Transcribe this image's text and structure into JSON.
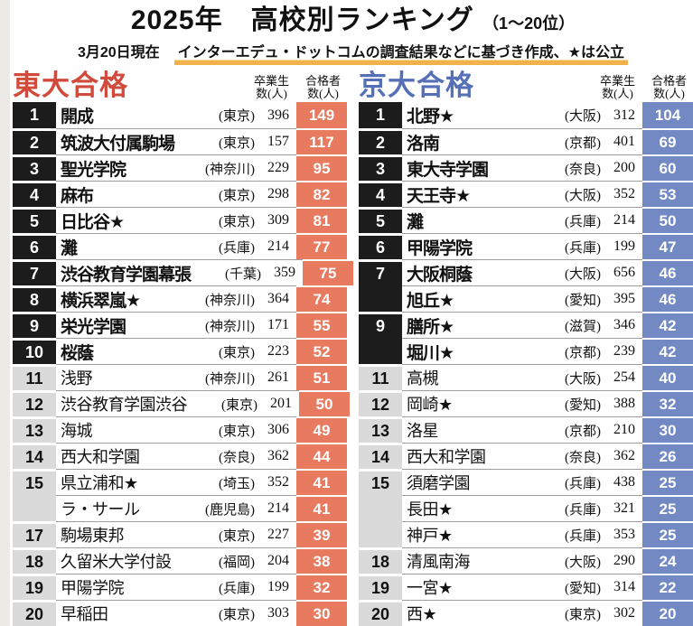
{
  "header": {
    "title_main": "2025年　高校別ランキング",
    "title_sub": "（1～20位）",
    "date_note": "3月20日現在",
    "source_note": "インターエデュ・ドットコムの調査結果などに基づき作成、★は公立",
    "highlight_color": "#f2b24b"
  },
  "columns": {
    "grad_line1": "卒業生",
    "grad_line2": "数(人)",
    "pass_line1": "合格者",
    "pass_line2": "数(人)"
  },
  "tables_meta": [
    {
      "title": "東大合格",
      "accent_text": "#d14b3c",
      "score_bg": "#e87a5f"
    },
    {
      "title": "京大合格",
      "accent_text": "#5570b7",
      "score_bg": "#7289c3"
    }
  ],
  "chart_data": [
    {
      "type": "table",
      "title": "東大合格",
      "columns": [
        "順位",
        "高校名",
        "都道府県",
        "卒業生数(人)",
        "合格者数(人)"
      ],
      "rows": [
        {
          "rank": "1",
          "school": "開成",
          "pref": "(東京)",
          "graduates": 396,
          "passers": 149,
          "tie": false
        },
        {
          "rank": "2",
          "school": "筑波大付属駒場",
          "pref": "(東京)",
          "graduates": 157,
          "passers": 117,
          "tie": false
        },
        {
          "rank": "3",
          "school": "聖光学院",
          "pref": "(神奈川)",
          "graduates": 229,
          "passers": 95,
          "tie": false
        },
        {
          "rank": "4",
          "school": "麻布",
          "pref": "(東京)",
          "graduates": 298,
          "passers": 82,
          "tie": false
        },
        {
          "rank": "5",
          "school": "日比谷★",
          "pref": "(東京)",
          "graduates": 309,
          "passers": 81,
          "tie": false
        },
        {
          "rank": "6",
          "school": "灘",
          "pref": "(兵庫)",
          "graduates": 214,
          "passers": 77,
          "tie": false
        },
        {
          "rank": "7",
          "school": "渋谷教育学園幕張",
          "pref": "(千葉)",
          "graduates": 359,
          "passers": 75,
          "tie": false
        },
        {
          "rank": "8",
          "school": "横浜翠嵐★",
          "pref": "(神奈川)",
          "graduates": 364,
          "passers": 74,
          "tie": false
        },
        {
          "rank": "9",
          "school": "栄光学園",
          "pref": "(神奈川)",
          "graduates": 171,
          "passers": 55,
          "tie": false
        },
        {
          "rank": "10",
          "school": "桜蔭",
          "pref": "(東京)",
          "graduates": 223,
          "passers": 52,
          "tie": false
        },
        {
          "rank": "11",
          "school": "浅野",
          "pref": "(神奈川)",
          "graduates": 261,
          "passers": 51,
          "tie": false
        },
        {
          "rank": "12",
          "school": "渋谷教育学園渋谷",
          "pref": "(東京)",
          "graduates": 201,
          "passers": 50,
          "tie": false
        },
        {
          "rank": "13",
          "school": "海城",
          "pref": "(東京)",
          "graduates": 306,
          "passers": 49,
          "tie": false
        },
        {
          "rank": "14",
          "school": "西大和学園",
          "pref": "(奈良)",
          "graduates": 362,
          "passers": 44,
          "tie": false
        },
        {
          "rank": "15",
          "school": "県立浦和★",
          "pref": "(埼玉)",
          "graduates": 352,
          "passers": 41,
          "tie": false
        },
        {
          "rank": "",
          "school": "ラ・サール",
          "pref": "(鹿児島)",
          "graduates": 214,
          "passers": 41,
          "tie": true
        },
        {
          "rank": "17",
          "school": "駒場東邦",
          "pref": "(東京)",
          "graduates": 227,
          "passers": 39,
          "tie": false
        },
        {
          "rank": "18",
          "school": "久留米大学付設",
          "pref": "(福岡)",
          "graduates": 204,
          "passers": 38,
          "tie": false
        },
        {
          "rank": "19",
          "school": "甲陽学院",
          "pref": "(兵庫)",
          "graduates": 199,
          "passers": 32,
          "tie": false
        },
        {
          "rank": "20",
          "school": "早稲田",
          "pref": "(東京)",
          "graduates": 303,
          "passers": 30,
          "tie": false
        }
      ]
    },
    {
      "type": "table",
      "title": "京大合格",
      "columns": [
        "順位",
        "高校名",
        "都道府県",
        "卒業生数(人)",
        "合格者数(人)"
      ],
      "rows": [
        {
          "rank": "1",
          "school": "北野★",
          "pref": "(大阪)",
          "graduates": 312,
          "passers": 104,
          "tie": false
        },
        {
          "rank": "2",
          "school": "洛南",
          "pref": "(京都)",
          "graduates": 401,
          "passers": 69,
          "tie": false
        },
        {
          "rank": "3",
          "school": "東大寺学園",
          "pref": "(奈良)",
          "graduates": 200,
          "passers": 60,
          "tie": false
        },
        {
          "rank": "4",
          "school": "天王寺★",
          "pref": "(大阪)",
          "graduates": 352,
          "passers": 53,
          "tie": false
        },
        {
          "rank": "5",
          "school": "灘",
          "pref": "(兵庫)",
          "graduates": 214,
          "passers": 50,
          "tie": false
        },
        {
          "rank": "6",
          "school": "甲陽学院",
          "pref": "(兵庫)",
          "graduates": 199,
          "passers": 47,
          "tie": false
        },
        {
          "rank": "7",
          "school": "大阪桐蔭",
          "pref": "(大阪)",
          "graduates": 656,
          "passers": 46,
          "tie": false
        },
        {
          "rank": "",
          "school": "旭丘★",
          "pref": "(愛知)",
          "graduates": 395,
          "passers": 46,
          "tie": true
        },
        {
          "rank": "9",
          "school": "膳所★",
          "pref": "(滋賀)",
          "graduates": 346,
          "passers": 42,
          "tie": false
        },
        {
          "rank": "",
          "school": "堀川★",
          "pref": "(京都)",
          "graduates": 239,
          "passers": 42,
          "tie": true
        },
        {
          "rank": "11",
          "school": "高槻",
          "pref": "(大阪)",
          "graduates": 254,
          "passers": 40,
          "tie": false
        },
        {
          "rank": "12",
          "school": "岡崎★",
          "pref": "(愛知)",
          "graduates": 388,
          "passers": 32,
          "tie": false
        },
        {
          "rank": "13",
          "school": "洛星",
          "pref": "(京都)",
          "graduates": 210,
          "passers": 30,
          "tie": false
        },
        {
          "rank": "14",
          "school": "西大和学園",
          "pref": "(奈良)",
          "graduates": 362,
          "passers": 26,
          "tie": false
        },
        {
          "rank": "15",
          "school": "須磨学園",
          "pref": "(兵庫)",
          "graduates": 438,
          "passers": 25,
          "tie": false
        },
        {
          "rank": "",
          "school": "長田★",
          "pref": "(兵庫)",
          "graduates": 321,
          "passers": 25,
          "tie": true
        },
        {
          "rank": "",
          "school": "神戸★",
          "pref": "(兵庫)",
          "graduates": 353,
          "passers": 25,
          "tie": true
        },
        {
          "rank": "18",
          "school": "清風南海",
          "pref": "(大阪)",
          "graduates": 290,
          "passers": 24,
          "tie": false
        },
        {
          "rank": "19",
          "school": "一宮★",
          "pref": "(愛知)",
          "graduates": 314,
          "passers": 22,
          "tie": false
        },
        {
          "rank": "20",
          "school": "西★",
          "pref": "(東京)",
          "graduates": 302,
          "passers": 20,
          "tie": false
        }
      ]
    }
  ]
}
